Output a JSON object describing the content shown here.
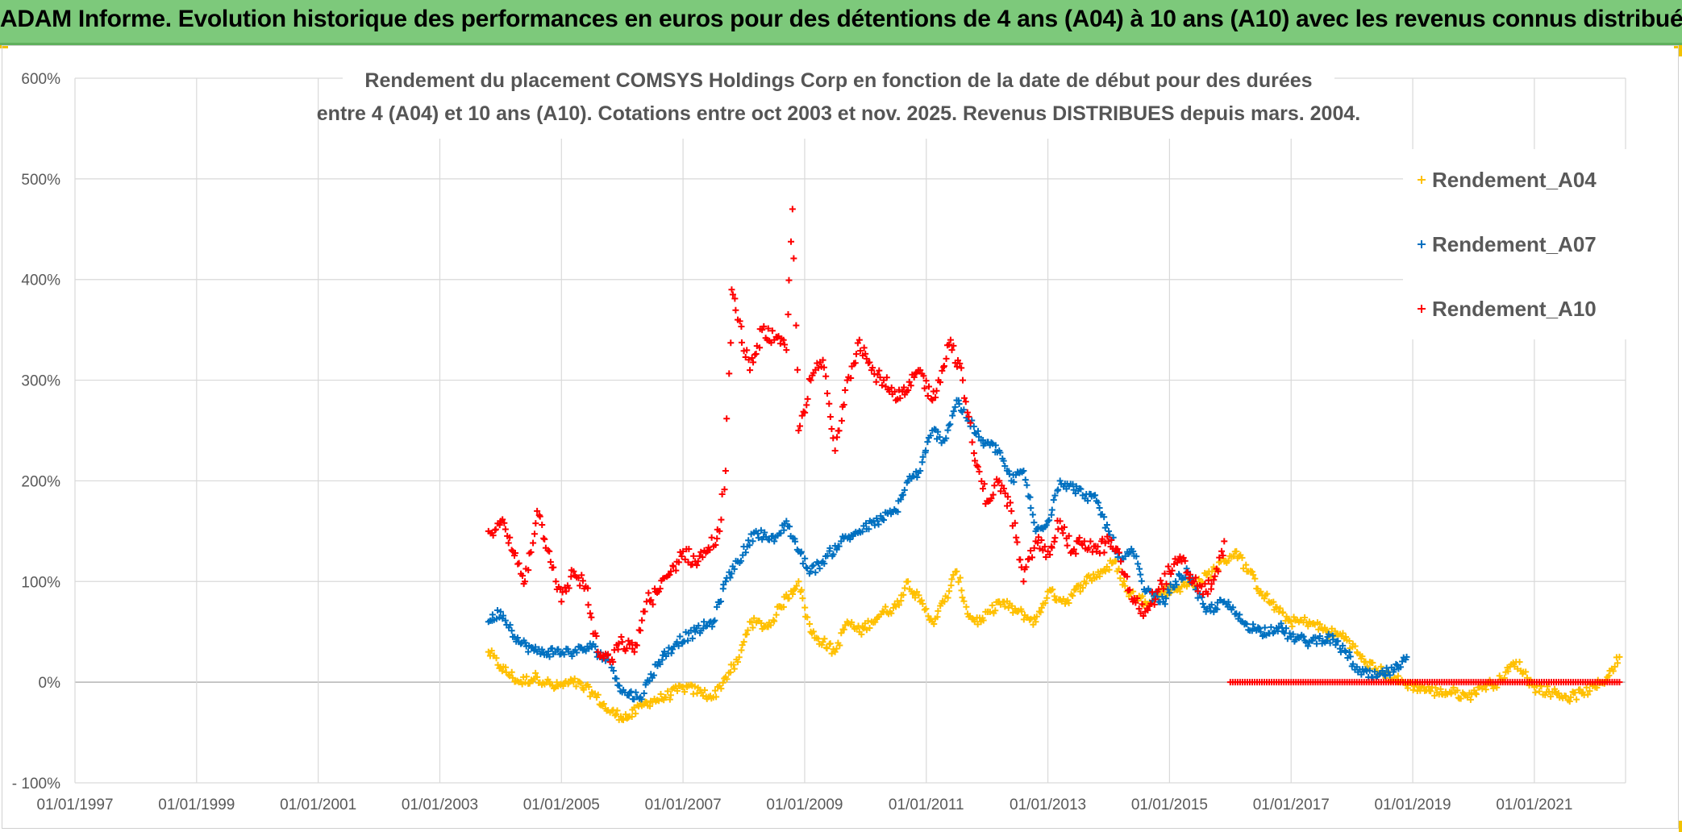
{
  "banner": {
    "title": "ADAM Informe. Evolution historique des performances en euros pour des détentions de 4 ans (A04) à 10 ans (A10) avec les revenus connus distribués",
    "color": "#7dc97b"
  },
  "chart_data": {
    "type": "scatter",
    "title_line1": "Rendement du placement COMSYS Holdings Corp en fonction de la date de début pour des durées",
    "title_line2": "entre 4 (A04) et 10 ans (A10). Cotations entre oct 2003 et nov. 2025. Revenus DISTRIBUES depuis mars. 2004.",
    "xlabel": "",
    "ylabel": "",
    "xlim": [
      1997.0,
      2022.5
    ],
    "ylim": [
      -100,
      600
    ],
    "x_ticks": [
      {
        "value": 1997,
        "label": "01/01/1997"
      },
      {
        "value": 1999,
        "label": "01/01/1999"
      },
      {
        "value": 2001,
        "label": "01/01/2001"
      },
      {
        "value": 2003,
        "label": "01/01/2003"
      },
      {
        "value": 2005,
        "label": "01/01/2005"
      },
      {
        "value": 2007,
        "label": "01/01/2007"
      },
      {
        "value": 2009,
        "label": "01/01/2009"
      },
      {
        "value": 2011,
        "label": "01/01/2011"
      },
      {
        "value": 2013,
        "label": "01/01/2013"
      },
      {
        "value": 2015,
        "label": "01/01/2015"
      },
      {
        "value": 2017,
        "label": "01/01/2017"
      },
      {
        "value": 2019,
        "label": "01/01/2019"
      },
      {
        "value": 2021,
        "label": "01/01/2021"
      }
    ],
    "y_ticks": [
      {
        "value": -100,
        "label": "- 100%"
      },
      {
        "value": 0,
        "label": "0%"
      },
      {
        "value": 100,
        "label": "100%"
      },
      {
        "value": 200,
        "label": "200%"
      },
      {
        "value": 300,
        "label": "300%"
      },
      {
        "value": 400,
        "label": "400%"
      },
      {
        "value": 500,
        "label": "500%"
      },
      {
        "value": 600,
        "label": "600%"
      }
    ],
    "grid": true,
    "legend_position": "top-right",
    "series": [
      {
        "name": "Rendement_A04",
        "color": "#ffc000",
        "x": [
          2003.8,
          2004.0,
          2004.3,
          2004.6,
          2004.9,
          2005.2,
          2005.5,
          2005.8,
          2006.1,
          2006.4,
          2006.7,
          2007.0,
          2007.3,
          2007.5,
          2007.7,
          2007.9,
          2008.1,
          2008.4,
          2008.6,
          2008.9,
          2009.1,
          2009.3,
          2009.5,
          2009.7,
          2009.9,
          2010.1,
          2010.3,
          2010.5,
          2010.7,
          2010.9,
          2011.1,
          2011.3,
          2011.5,
          2011.7,
          2011.9,
          2012.2,
          2012.5,
          2012.8,
          2013.0,
          2013.3,
          2013.6,
          2013.9,
          2014.1,
          2014.3,
          2014.6,
          2014.9,
          2015.2,
          2015.5,
          2015.7,
          2015.9,
          2016.1,
          2016.3,
          2016.5,
          2016.8,
          2017.0,
          2017.3,
          2017.6,
          2017.9,
          2018.2,
          2018.5,
          2018.8,
          2019.1,
          2019.4,
          2019.7,
          2019.9,
          2020.1,
          2020.4,
          2020.7,
          2021.0,
          2021.3,
          2021.6,
          2021.8,
          2022.0,
          2022.2,
          2022.4
        ],
        "y": [
          30,
          15,
          0,
          5,
          -5,
          0,
          -10,
          -30,
          -35,
          -20,
          -15,
          -5,
          -10,
          -15,
          5,
          20,
          60,
          55,
          75,
          100,
          50,
          40,
          30,
          60,
          50,
          60,
          70,
          75,
          100,
          80,
          60,
          80,
          110,
          65,
          60,
          80,
          70,
          60,
          90,
          80,
          100,
          110,
          120,
          90,
          80,
          90,
          95,
          100,
          110,
          120,
          130,
          110,
          90,
          70,
          60,
          60,
          50,
          45,
          20,
          10,
          0,
          -5,
          -10,
          -10,
          -15,
          -5,
          0,
          20,
          -5,
          -10,
          -15,
          -10,
          -5,
          5,
          25
        ]
      },
      {
        "name": "Rendement_A07",
        "color": "#0070c0",
        "x": [
          2003.8,
          2004.0,
          2004.3,
          2004.6,
          2004.9,
          2005.2,
          2005.5,
          2005.8,
          2006.0,
          2006.3,
          2006.6,
          2006.9,
          2007.2,
          2007.5,
          2007.7,
          2007.9,
          2008.2,
          2008.5,
          2008.7,
          2008.9,
          2009.1,
          2009.3,
          2009.6,
          2009.9,
          2010.2,
          2010.5,
          2010.7,
          2010.9,
          2011.1,
          2011.3,
          2011.5,
          2011.7,
          2011.9,
          2012.2,
          2012.4,
          2012.6,
          2012.8,
          2013.0,
          2013.2,
          2013.5,
          2013.8,
          2014.0,
          2014.2,
          2014.4,
          2014.6,
          2014.9,
          2015.1,
          2015.3,
          2015.6,
          2015.9,
          2016.2,
          2016.5,
          2016.8,
          2017.0,
          2017.3,
          2017.6,
          2017.9,
          2018.1,
          2018.4,
          2018.6,
          2018.8,
          2018.9
        ],
        "y": [
          60,
          70,
          40,
          30,
          30,
          30,
          35,
          20,
          -10,
          -15,
          20,
          40,
          50,
          60,
          100,
          120,
          150,
          140,
          160,
          130,
          110,
          120,
          140,
          150,
          160,
          170,
          200,
          210,
          250,
          240,
          280,
          260,
          240,
          230,
          200,
          210,
          150,
          160,
          200,
          190,
          180,
          150,
          120,
          130,
          90,
          80,
          100,
          110,
          70,
          80,
          60,
          50,
          55,
          45,
          40,
          45,
          30,
          10,
          5,
          10,
          15,
          25
        ]
      },
      {
        "name": "Rendement_A10",
        "color": "#ff0000",
        "x": [
          2003.8,
          2004.0,
          2004.2,
          2004.4,
          2004.6,
          2004.8,
          2005.0,
          2005.2,
          2005.4,
          2005.6,
          2005.8,
          2006.0,
          2006.2,
          2006.4,
          2006.6,
          2006.8,
          2007.0,
          2007.2,
          2007.4,
          2007.6,
          2007.7,
          2007.8,
          2007.9,
          2008.1,
          2008.3,
          2008.5,
          2008.7,
          2008.8,
          2008.9,
          2009.1,
          2009.3,
          2009.5,
          2009.7,
          2009.9,
          2010.1,
          2010.3,
          2010.5,
          2010.7,
          2010.9,
          2011.1,
          2011.2,
          2011.4,
          2011.6,
          2011.8,
          2012.0,
          2012.2,
          2012.4,
          2012.6,
          2012.8,
          2013.0,
          2013.2,
          2013.4,
          2013.6,
          2013.8,
          2014.0,
          2014.2,
          2014.4,
          2014.6,
          2014.8,
          2015.0,
          2015.2,
          2015.4,
          2015.6,
          2015.8,
          2015.9
        ],
        "y": [
          150,
          160,
          130,
          100,
          170,
          130,
          80,
          110,
          95,
          30,
          20,
          40,
          30,
          80,
          90,
          110,
          130,
          120,
          130,
          150,
          210,
          390,
          360,
          310,
          350,
          340,
          330,
          470,
          250,
          300,
          320,
          230,
          300,
          340,
          310,
          300,
          280,
          290,
          310,
          280,
          300,
          340,
          300,
          220,
          180,
          200,
          170,
          100,
          140,
          130,
          160,
          130,
          140,
          130,
          140,
          120,
          80,
          70,
          90,
          110,
          120,
          100,
          90,
          110,
          140
        ]
      },
      {
        "name": "Rendement_A10 (0%)",
        "color": "#ff0000",
        "x_range": [
          2016.0,
          2022.4
        ],
        "y": 0
      }
    ]
  }
}
